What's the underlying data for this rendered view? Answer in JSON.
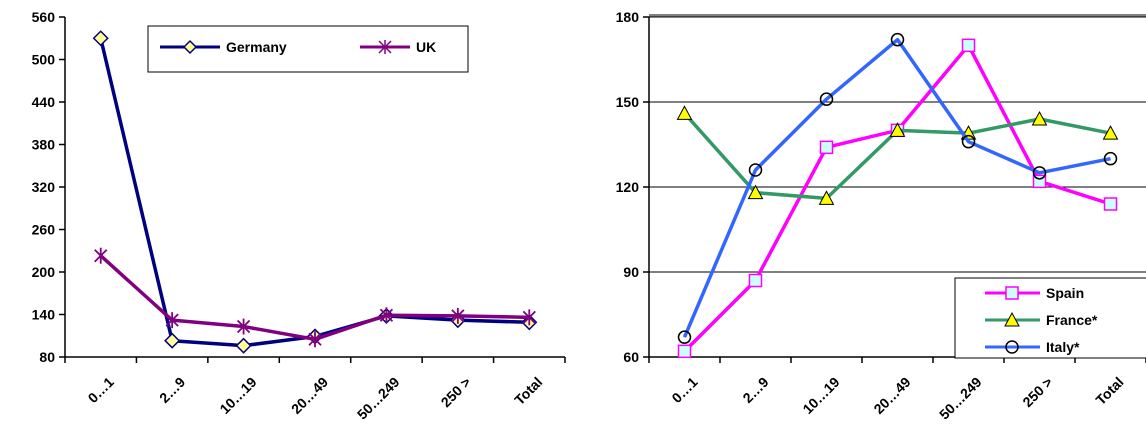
{
  "chart_data": [
    {
      "type": "line",
      "categories": [
        "0…1",
        "2…9",
        "10…19",
        "20…49",
        "50…249",
        "250 >",
        "Total"
      ],
      "ylim": [
        80,
        560
      ],
      "yticks": [
        80,
        140,
        200,
        260,
        320,
        380,
        440,
        500,
        560
      ],
      "grid": false,
      "legend_position": "top",
      "series": [
        {
          "name": "Germany",
          "values": [
            530,
            103,
            96,
            109,
            138,
            132,
            129
          ],
          "color": "#000080",
          "marker": "diamond",
          "marker_fill": "#ffff99"
        },
        {
          "name": "UK",
          "values": [
            223,
            132,
            123,
            105,
            139,
            138,
            136
          ],
          "color": "#800080",
          "marker": "star",
          "marker_fill": "none"
        }
      ]
    },
    {
      "type": "line",
      "categories": [
        "0…1",
        "2…9",
        "10…19",
        "20…49",
        "50…249",
        "250 >",
        "Total"
      ],
      "ylim": [
        60,
        180
      ],
      "yticks": [
        60,
        90,
        120,
        150,
        180
      ],
      "grid": true,
      "legend_position": "bottom-right",
      "series": [
        {
          "name": "Spain",
          "values": [
            62,
            87,
            134,
            140,
            170,
            122,
            114
          ],
          "color": "#ff00ff",
          "marker": "square",
          "marker_fill": "#ccffff"
        },
        {
          "name": "France*",
          "values": [
            146,
            118,
            116,
            140,
            139,
            144,
            139
          ],
          "color": "#339966",
          "marker": "triangle",
          "marker_fill": "#ffff00"
        },
        {
          "name": "Italy*",
          "values": [
            67,
            126,
            151,
            172,
            136,
            125,
            130
          ],
          "color": "#3366ff",
          "marker": "circle",
          "marker_fill": "none"
        }
      ]
    }
  ]
}
